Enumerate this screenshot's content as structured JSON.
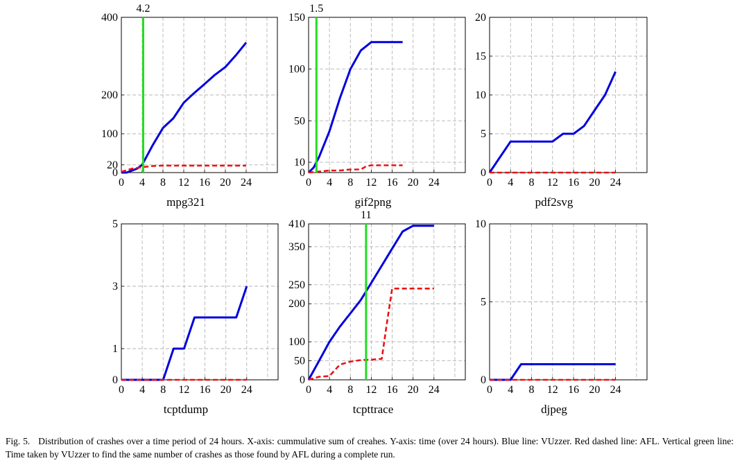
{
  "figure": {
    "caption_label": "Fig. 5.",
    "caption_text": "Distribution of crashes over a time period of 24 hours. X-axis: cummulative sum of creahes. Y-axis: time (over 24 hours). Blue line: VUzzer. Red dashed line: AFL. Vertical green line: Time taken by VUzzer to find the same number of crashes as those found by AFL during a complete run."
  },
  "colors": {
    "vuzzer": "#0000dd",
    "afl": "#ee1111",
    "marker": "#22dd22",
    "grid": "#b4b4b4"
  },
  "chart_data": [
    {
      "type": "line",
      "title": "mpg321",
      "xlim": [
        0,
        24
      ],
      "ylim": [
        0,
        400
      ],
      "xticks": [
        0,
        4,
        8,
        12,
        16,
        20,
        24
      ],
      "yticks": [
        0,
        20,
        100,
        200,
        400
      ],
      "xgrid": [
        0,
        4,
        8,
        12,
        16,
        20,
        24,
        28,
        32
      ],
      "ygrid": [
        0,
        20,
        100,
        200,
        400
      ],
      "marker_x": 4.2,
      "marker_label": "4.2",
      "series": [
        {
          "role": "vuzzer",
          "style": "solid",
          "x": [
            0,
            1,
            2,
            3,
            4,
            6,
            8,
            10,
            12,
            14,
            16,
            18,
            20,
            22,
            24
          ],
          "y": [
            0,
            0,
            5,
            10,
            20,
            70,
            115,
            140,
            180,
            205,
            228,
            252,
            272,
            302,
            335
          ]
        },
        {
          "role": "afl",
          "style": "dashed",
          "x": [
            0,
            2,
            4,
            6,
            8,
            12,
            16,
            20,
            24
          ],
          "y": [
            2,
            10,
            14,
            17,
            18,
            18,
            18,
            18,
            18
          ]
        }
      ]
    },
    {
      "type": "line",
      "title": "gif2png",
      "xlim": [
        0,
        24
      ],
      "ylim": [
        0,
        150
      ],
      "xticks": [
        0,
        4,
        8,
        12,
        16,
        20,
        24
      ],
      "yticks": [
        0,
        10,
        50,
        100,
        150
      ],
      "xgrid": [
        0,
        4,
        8,
        12,
        16,
        20,
        24,
        28,
        32
      ],
      "ygrid": [
        0,
        10,
        50,
        100,
        150
      ],
      "marker_x": 1.5,
      "marker_label": "1.5",
      "series": [
        {
          "role": "vuzzer",
          "style": "solid",
          "x": [
            0,
            1,
            2,
            4,
            6,
            8,
            10,
            12,
            14,
            16,
            18
          ],
          "y": [
            0,
            5,
            15,
            40,
            72,
            100,
            118,
            126,
            126,
            126,
            126
          ]
        },
        {
          "role": "afl",
          "style": "dashed",
          "x": [
            0,
            2,
            4,
            6,
            8,
            10,
            11,
            12,
            14,
            16,
            18
          ],
          "y": [
            0,
            1,
            2,
            2,
            3,
            3,
            6,
            7,
            7,
            7,
            7
          ]
        }
      ]
    },
    {
      "type": "line",
      "title": "pdf2svg",
      "xlim": [
        0,
        24
      ],
      "ylim": [
        0,
        20
      ],
      "xticks": [
        0,
        4,
        8,
        12,
        16,
        20,
        24
      ],
      "yticks": [
        0,
        5,
        10,
        15,
        20
      ],
      "xgrid": [
        0,
        4,
        8,
        12,
        16,
        20,
        24,
        28,
        32
      ],
      "ygrid": [
        0,
        5,
        10,
        15,
        20
      ],
      "marker_x": null,
      "marker_label": "",
      "series": [
        {
          "role": "vuzzer",
          "style": "solid",
          "x": [
            0,
            2,
            4,
            6,
            8,
            10,
            12,
            14,
            16,
            18,
            20,
            22,
            24
          ],
          "y": [
            0,
            2,
            4,
            4,
            4,
            4,
            4,
            5,
            5,
            6,
            8,
            10,
            13
          ]
        },
        {
          "role": "afl",
          "style": "dashed",
          "x": [
            0,
            24
          ],
          "y": [
            0,
            0
          ]
        }
      ]
    },
    {
      "type": "line",
      "title": "tcptdump",
      "xlim": [
        0,
        24
      ],
      "ylim": [
        0,
        5
      ],
      "xticks": [
        0,
        4,
        8,
        12,
        16,
        20,
        24
      ],
      "yticks": [
        0,
        1,
        3,
        5
      ],
      "xgrid": [
        0,
        4,
        8,
        12,
        16,
        20,
        24,
        28,
        32
      ],
      "ygrid": [
        0,
        1,
        3,
        5
      ],
      "marker_x": null,
      "marker_label": "",
      "series": [
        {
          "role": "vuzzer",
          "style": "solid",
          "x": [
            0,
            8,
            10,
            12,
            14,
            16,
            18,
            20,
            22,
            24
          ],
          "y": [
            0,
            0,
            1,
            1,
            2,
            2,
            2,
            2,
            2,
            3
          ]
        },
        {
          "role": "afl",
          "style": "dashed",
          "x": [
            0,
            24
          ],
          "y": [
            0,
            0
          ]
        }
      ]
    },
    {
      "type": "line",
      "title": "tcpttrace",
      "xlim": [
        0,
        24
      ],
      "ylim": [
        0,
        410
      ],
      "xticks": [
        0,
        4,
        8,
        12,
        16,
        20,
        24
      ],
      "yticks": [
        0,
        50,
        100,
        200,
        250,
        350,
        410
      ],
      "xgrid": [
        0,
        4,
        8,
        12,
        16,
        20,
        24,
        28,
        32
      ],
      "ygrid": [
        0,
        50,
        100,
        200,
        250,
        350,
        410
      ],
      "marker_x": 11,
      "marker_label": "11",
      "series": [
        {
          "role": "vuzzer",
          "style": "solid",
          "x": [
            0,
            2,
            4,
            6,
            8,
            10,
            12,
            14,
            16,
            18,
            20,
            22,
            24
          ],
          "y": [
            0,
            50,
            100,
            140,
            175,
            210,
            255,
            300,
            345,
            390,
            405,
            405,
            405
          ]
        },
        {
          "role": "afl",
          "style": "dashed",
          "x": [
            0,
            2,
            4,
            6,
            8,
            10,
            12,
            14,
            15,
            16,
            18,
            20,
            24
          ],
          "y": [
            0,
            8,
            10,
            40,
            48,
            52,
            53,
            55,
            150,
            240,
            240,
            240,
            240
          ]
        }
      ]
    },
    {
      "type": "line",
      "title": "djpeg",
      "xlim": [
        0,
        24
      ],
      "ylim": [
        0,
        10
      ],
      "xticks": [
        0,
        4,
        8,
        12,
        16,
        20,
        24
      ],
      "yticks": [
        0,
        5,
        10
      ],
      "xgrid": [
        0,
        4,
        8,
        12,
        16,
        20,
        24,
        28,
        32
      ],
      "ygrid": [
        0,
        5,
        10
      ],
      "marker_x": null,
      "marker_label": "",
      "series": [
        {
          "role": "vuzzer",
          "style": "solid",
          "x": [
            0,
            4,
            6,
            8,
            12,
            16,
            20,
            24
          ],
          "y": [
            0,
            0,
            1,
            1,
            1,
            1,
            1,
            1
          ]
        },
        {
          "role": "afl",
          "style": "dashed",
          "x": [
            0,
            24
          ],
          "y": [
            0,
            0
          ]
        }
      ]
    }
  ]
}
